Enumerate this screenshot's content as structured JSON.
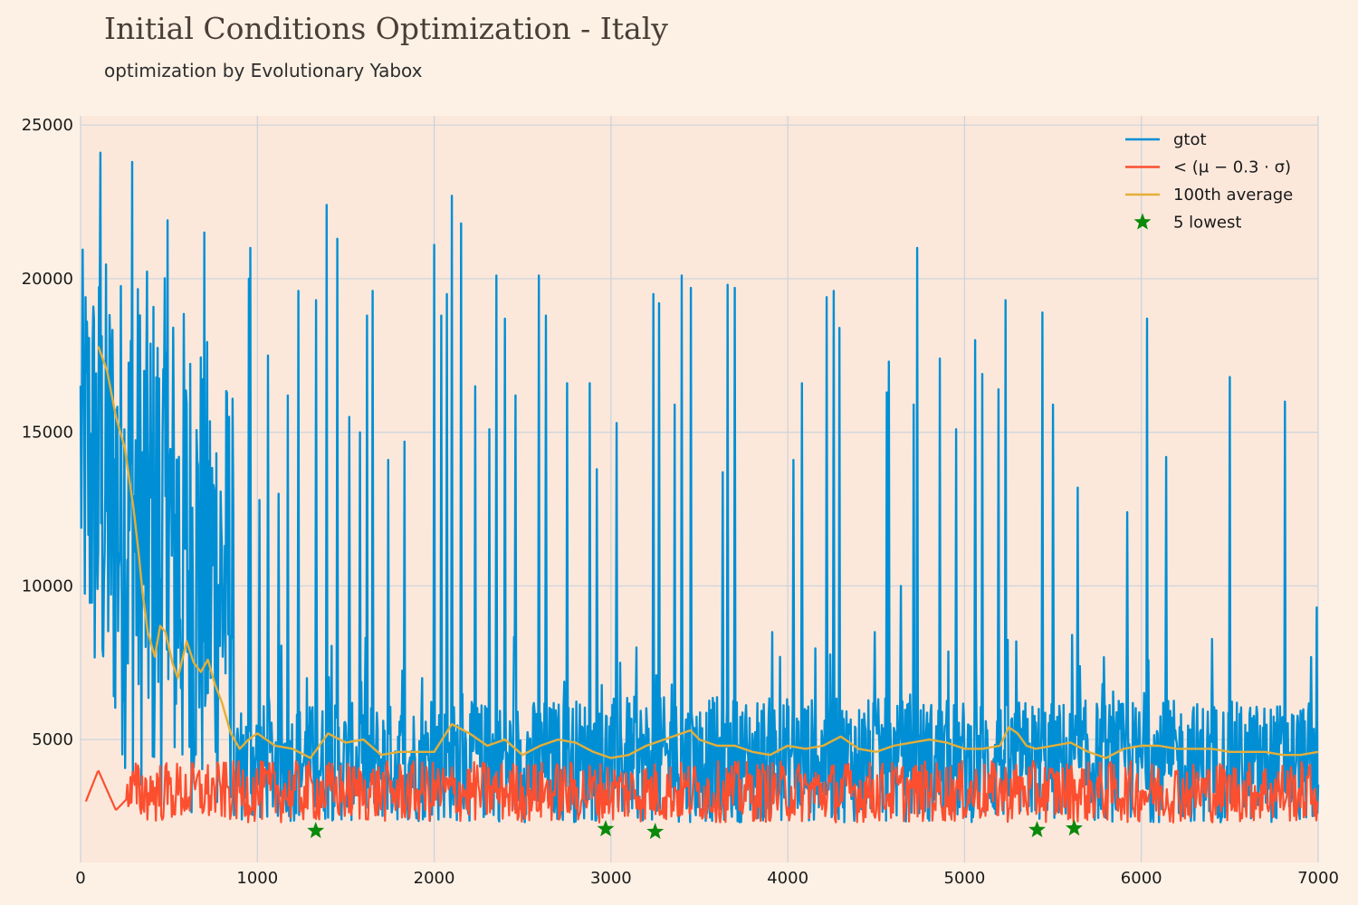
{
  "header": {
    "title": "Initial Conditions Optimization - Italy",
    "subtitle": "optimization by Evolutionary Yabox"
  },
  "colors": {
    "background": "#fdf1e5",
    "plot_area": "#fbe8db",
    "grid": "#cbd2db",
    "gtot": "#008fd5",
    "threshold": "#fc4f30",
    "average": "#e5ae38",
    "stars": "#0a8a0a"
  },
  "chart_data": {
    "type": "line",
    "title": "Initial Conditions Optimization - Italy",
    "subtitle": "optimization by Evolutionary Yabox",
    "xlabel": "",
    "ylabel": "",
    "xlim": [
      0,
      7000
    ],
    "ylim": [
      1000,
      25300
    ],
    "grid": true,
    "legend_position": "top-right",
    "x_ticks": [
      0,
      1000,
      2000,
      3000,
      4000,
      5000,
      6000,
      7000
    ],
    "y_ticks": [
      5000,
      10000,
      15000,
      20000,
      25000
    ],
    "x_tick_labels": [
      "0",
      "1000",
      "2000",
      "3000",
      "4000",
      "5000",
      "6000",
      "7000"
    ],
    "y_tick_labels": [
      "5000",
      "10000",
      "15000",
      "20000",
      "25000"
    ],
    "series": [
      {
        "name": "gtot",
        "style": "noisy-line",
        "envelope_x": [
          0,
          100,
          300,
          500,
          700,
          860,
          870,
          1000,
          2000,
          3000,
          4000,
          5000,
          6000,
          7000
        ],
        "envelope_lower": [
          8000,
          5500,
          3500,
          2500,
          2500,
          2500,
          2300,
          2300,
          2300,
          2300,
          2300,
          2300,
          2300,
          2300
        ],
        "envelope_upper": [
          21000,
          21000,
          20500,
          20000,
          18500,
          17000,
          6200,
          6200,
          6200,
          6400,
          6400,
          6300,
          6300,
          6200
        ],
        "spikes": [
          {
            "x": 110,
            "y": 24100
          },
          {
            "x": 290,
            "y": 23800
          },
          {
            "x": 490,
            "y": 21900
          },
          {
            "x": 700,
            "y": 21500
          },
          {
            "x": 950,
            "y": 20000
          },
          {
            "x": 960,
            "y": 21000
          },
          {
            "x": 1010,
            "y": 12800
          },
          {
            "x": 1060,
            "y": 17500
          },
          {
            "x": 1120,
            "y": 13000
          },
          {
            "x": 1170,
            "y": 16200
          },
          {
            "x": 1230,
            "y": 19600
          },
          {
            "x": 1280,
            "y": 7000
          },
          {
            "x": 1330,
            "y": 19300
          },
          {
            "x": 1390,
            "y": 22400
          },
          {
            "x": 1450,
            "y": 21300
          },
          {
            "x": 1520,
            "y": 15500
          },
          {
            "x": 1580,
            "y": 15000
          },
          {
            "x": 1620,
            "y": 18800
          },
          {
            "x": 1650,
            "y": 19600
          },
          {
            "x": 1740,
            "y": 14100
          },
          {
            "x": 1830,
            "y": 14700
          },
          {
            "x": 1930,
            "y": 7000
          },
          {
            "x": 2000,
            "y": 21100
          },
          {
            "x": 2040,
            "y": 18800
          },
          {
            "x": 2070,
            "y": 19500
          },
          {
            "x": 2100,
            "y": 22700
          },
          {
            "x": 2150,
            "y": 21800
          },
          {
            "x": 2230,
            "y": 16500
          },
          {
            "x": 2310,
            "y": 15100
          },
          {
            "x": 2350,
            "y": 20100
          },
          {
            "x": 2400,
            "y": 18700
          },
          {
            "x": 2460,
            "y": 16200
          },
          {
            "x": 2590,
            "y": 20100
          },
          {
            "x": 2630,
            "y": 18800
          },
          {
            "x": 2750,
            "y": 16600
          },
          {
            "x": 2880,
            "y": 16600
          },
          {
            "x": 2920,
            "y": 13800
          },
          {
            "x": 3030,
            "y": 15300
          },
          {
            "x": 3050,
            "y": 7500
          },
          {
            "x": 3240,
            "y": 19500
          },
          {
            "x": 3270,
            "y": 19200
          },
          {
            "x": 3360,
            "y": 15900
          },
          {
            "x": 3400,
            "y": 20100
          },
          {
            "x": 3450,
            "y": 19700
          },
          {
            "x": 3630,
            "y": 13700
          },
          {
            "x": 3660,
            "y": 19800
          },
          {
            "x": 3700,
            "y": 19700
          },
          {
            "x": 3910,
            "y": 8500
          },
          {
            "x": 4030,
            "y": 14100
          },
          {
            "x": 4080,
            "y": 16600
          },
          {
            "x": 4220,
            "y": 19400
          },
          {
            "x": 4260,
            "y": 19600
          },
          {
            "x": 4290,
            "y": 18400
          },
          {
            "x": 4560,
            "y": 16300
          },
          {
            "x": 4570,
            "y": 17300
          },
          {
            "x": 4640,
            "y": 10000
          },
          {
            "x": 4710,
            "y": 15900
          },
          {
            "x": 4730,
            "y": 21000
          },
          {
            "x": 4860,
            "y": 17400
          },
          {
            "x": 4950,
            "y": 15100
          },
          {
            "x": 5060,
            "y": 18000
          },
          {
            "x": 5100,
            "y": 16900
          },
          {
            "x": 5190,
            "y": 16400
          },
          {
            "x": 5230,
            "y": 19300
          },
          {
            "x": 5440,
            "y": 18900
          },
          {
            "x": 5500,
            "y": 15900
          },
          {
            "x": 5640,
            "y": 13200
          },
          {
            "x": 5920,
            "y": 12400
          },
          {
            "x": 6030,
            "y": 18700
          },
          {
            "x": 6140,
            "y": 14200
          },
          {
            "x": 6500,
            "y": 16800
          },
          {
            "x": 6810,
            "y": 16000
          },
          {
            "x": 6990,
            "y": 9300
          }
        ]
      },
      {
        "name": "< (μ − 0.3 · σ)",
        "style": "noisy-line",
        "envelope_x": [
          0,
          100,
          200,
          300,
          7000
        ],
        "envelope_lower": [
          2500,
          3900,
          2600,
          2300,
          2300
        ],
        "envelope_upper": [
          2600,
          4100,
          2800,
          4300,
          4300
        ]
      },
      {
        "name": "100th average",
        "style": "line",
        "x": [
          100,
          150,
          200,
          250,
          300,
          330,
          350,
          380,
          420,
          450,
          480,
          520,
          550,
          600,
          640,
          680,
          720,
          760,
          800,
          850,
          900,
          950,
          1000,
          1100,
          1200,
          1300,
          1400,
          1500,
          1600,
          1700,
          1800,
          1900,
          2000,
          2100,
          2200,
          2300,
          2400,
          2500,
          2600,
          2700,
          2800,
          2900,
          3000,
          3100,
          3200,
          3300,
          3400,
          3450,
          3500,
          3600,
          3700,
          3800,
          3900,
          4000,
          4100,
          4200,
          4300,
          4400,
          4500,
          4600,
          4700,
          4800,
          4900,
          5000,
          5100,
          5200,
          5250,
          5300,
          5350,
          5400,
          5500,
          5600,
          5700,
          5800,
          5900,
          6000,
          6100,
          6200,
          6300,
          6400,
          6500,
          6600,
          6700,
          6800,
          6900,
          7000
        ],
        "y": [
          17800,
          17000,
          15500,
          14500,
          12500,
          11000,
          9800,
          8500,
          7700,
          8700,
          8500,
          7500,
          7000,
          8200,
          7500,
          7200,
          7600,
          6800,
          6200,
          5200,
          4700,
          5000,
          5200,
          4800,
          4700,
          4400,
          5200,
          4900,
          5000,
          4500,
          4600,
          4600,
          4600,
          5500,
          5200,
          4800,
          5000,
          4500,
          4800,
          5000,
          4900,
          4600,
          4400,
          4500,
          4800,
          5000,
          5200,
          5300,
          5000,
          4800,
          4800,
          4600,
          4500,
          4800,
          4700,
          4800,
          5100,
          4700,
          4600,
          4800,
          4900,
          5000,
          4900,
          4700,
          4700,
          4800,
          5400,
          5200,
          4800,
          4700,
          4800,
          4900,
          4600,
          4400,
          4700,
          4800,
          4800,
          4700,
          4700,
          4700,
          4600,
          4600,
          4600,
          4500,
          4500,
          4600
        ]
      },
      {
        "name": "5 lowest",
        "style": "markers",
        "x": [
          1330,
          2970,
          3250,
          5410,
          5620
        ],
        "y": [
          2030,
          2090,
          2000,
          2060,
          2110
        ]
      }
    ],
    "legend": [
      "gtot",
      "< (μ − 0.3 · σ)",
      "100th average",
      "5 lowest"
    ]
  }
}
